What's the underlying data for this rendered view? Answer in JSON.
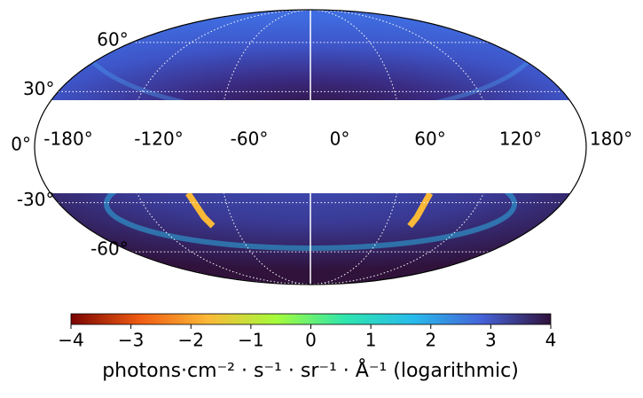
{
  "chart_data": {
    "type": "map",
    "xlim": [
      -180,
      180
    ],
    "ylim": [
      -90,
      90
    ],
    "xticks": [
      {
        "value": -180,
        "label": "-180°"
      },
      {
        "value": -120,
        "label": "-120°"
      },
      {
        "value": -60,
        "label": "-60°"
      },
      {
        "value": 0,
        "label": "0°"
      },
      {
        "value": 60,
        "label": "60°"
      },
      {
        "value": 120,
        "label": "120°"
      },
      {
        "value": 180,
        "label": "180°"
      }
    ],
    "yticks": [
      {
        "value": 60,
        "label": "60°"
      },
      {
        "value": 30,
        "label": "30°"
      },
      {
        "value": 0,
        "label": "0°"
      },
      {
        "value": -30,
        "label": "-30°"
      },
      {
        "value": -60,
        "label": "-60°"
      }
    ],
    "grid": true,
    "colorbar": {
      "lim": [
        -4,
        4
      ],
      "ticks": [
        {
          "value": -4,
          "label": "−4"
        },
        {
          "value": -3,
          "label": "−3"
        },
        {
          "value": -2,
          "label": "−2"
        },
        {
          "value": -1,
          "label": "−1"
        },
        0,
        1,
        2,
        3,
        4
      ],
      "label": "photons·cm⁻² · s⁻¹ · sr⁻¹ · Å⁻¹ (logarithmic)",
      "colormap": [
        "#7a0403",
        "#f05b12",
        "#fbb938",
        "#a4fc3b",
        "#2ee5ae",
        "#29bbec",
        "#4662d7",
        "#30123b"
      ]
    }
  }
}
